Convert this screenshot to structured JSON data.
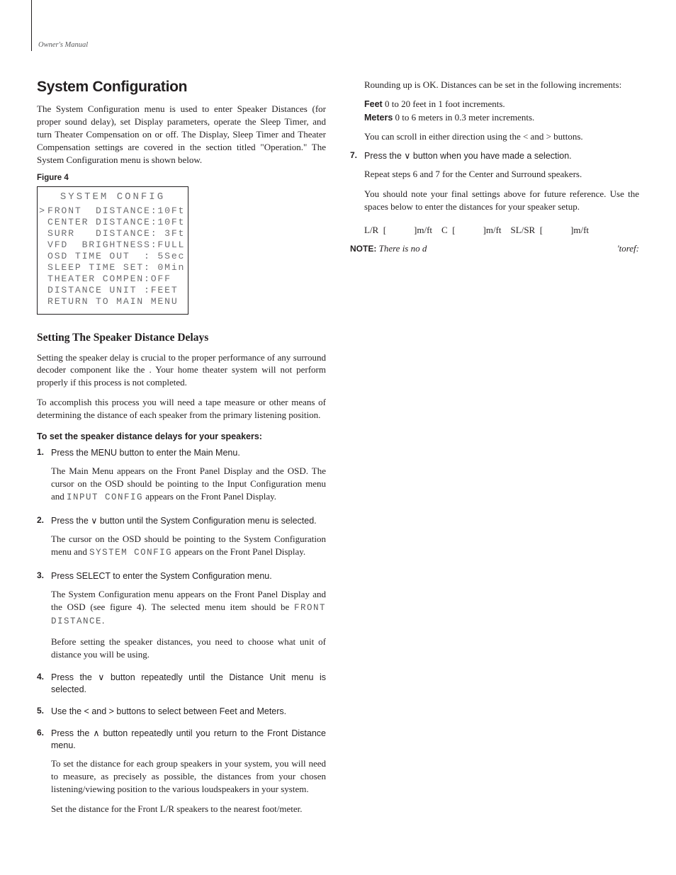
{
  "header": {
    "text": "Owner's Manual"
  },
  "left": {
    "h1": "System Configuration",
    "intro": "The System Configuration menu is used to enter Speaker Distances (for proper sound delay), set Display parameters, operate the Sleep Timer, and turn Theater Compensation on or off. The Display, Sleep Timer and Theater Compensation settings are covered in the section titled \"Operation.\" The System Configuration menu is shown below.",
    "fig_label": "Figure 4",
    "osd": {
      "title": "SYSTEM CONFIG",
      "cursor_row": 0,
      "lines": [
        "FRONT  DISTANCE:10Ft",
        "CENTER DISTANCE:10Ft",
        "SURR   DISTANCE: 3Ft",
        "VFD  BRIGHTNESS:FULL",
        "OSD TIME OUT  : 5Sec",
        "SLEEP TIME SET: 0Min",
        "THEATER COMPEN:OFF",
        "DISTANCE UNIT :FEET",
        "RETURN TO MAIN MENU"
      ]
    },
    "h2": "Setting The Speaker Distance Delays",
    "p_set1": "Setting the speaker delay is crucial to the proper performance of any surround decoder component like the            . Your home theater system will not perform properly if this process is not completed.",
    "p_set2": "To accomplish this process you will need a tape measure or other means of determining the distance of each speaker from the primary listening position.",
    "sub_bold": "To set the speaker distance delays for your speakers:",
    "steps": [
      {
        "num": "1.",
        "lead": "Press the MENU button to enter the Main Menu.",
        "paras": [
          {
            "pre": "The Main Menu appears on the Front Panel Display and the OSD. The cursor on the OSD should be pointing to the Input Configuration menu and ",
            "mono": "INPUT CONFIG",
            "post": " appears on the Front Panel Display."
          }
        ]
      },
      {
        "num": "2.",
        "lead": "Press the ∨ button until the System Configuration menu is selected.",
        "paras": [
          {
            "pre": "The cursor on the OSD should be pointing to the System Configuration menu and ",
            "mono": "SYSTEM CONFIG",
            "post": " appears on the Front Panel Display."
          }
        ]
      },
      {
        "num": "3.",
        "lead": "Press SELECT to enter the System Configuration menu.",
        "paras": [
          {
            "pre": "The System Configuration menu appears on the Front Panel Display and the OSD (see figure 4).  The selected menu item should be ",
            "mono": "FRONT DISTANCE",
            "post": "."
          },
          {
            "pre": "Before setting the speaker distances, you need to choose what unit of distance you will be using.",
            "mono": "",
            "post": ""
          }
        ]
      },
      {
        "num": "4.",
        "lead": "Press the ∨ button repeatedly until the Distance Unit menu is selected.",
        "paras": []
      },
      {
        "num": "5.",
        "lead": "Use the < and > buttons to select between Feet and Meters.",
        "paras": []
      },
      {
        "num": "6.",
        "lead": "Press the ∧ button repeatedly until you return to the Front Distance menu.",
        "paras": [
          {
            "pre": "To set the distance for each group speakers in your system, you will need to measure, as precisely as possible, the distances from your chosen listening/viewing position to the various loudspeakers in your system.",
            "mono": "",
            "post": ""
          },
          {
            "pre": "Set the distance for the Front L/R speakers to the nearest foot/meter.",
            "mono": "",
            "post": ""
          }
        ]
      }
    ]
  },
  "right": {
    "p_round": "Rounding up is OK. Distances can be set in the following increments:",
    "feet_label": "Feet",
    "feet_text": " 0 to 20 feet in 1 foot increments.",
    "meters_label": "Meters",
    "meters_text": " 0 to 6 meters in 0.3 meter increments.",
    "p_scroll": "You can scroll in either direction using the < and > buttons.",
    "step7": {
      "num": "7.",
      "lead": "Press the ∨ button when you have made a selection.",
      "p1": "Repeat steps 6 and 7 for the Center and Surround speakers.",
      "p2": "You should note your final settings above for future reference. Use the spaces below to enter the distances for your speaker setup."
    },
    "fill": "L/R  [            ]m/ft    C  [            ]m/ft    SL/SR  [            ]m/ft",
    "note_bold": "NOTE:",
    "note_it_left": " There is no d",
    "note_it_right": "'toref:"
  }
}
